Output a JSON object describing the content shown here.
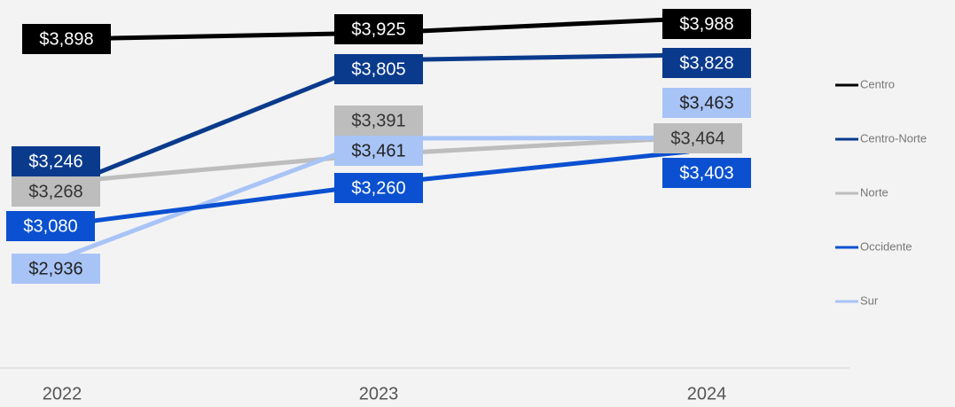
{
  "chart_data": {
    "type": "line",
    "x": [
      "2022",
      "2023",
      "2024"
    ],
    "ylim": [
      2450,
      4070
    ],
    "series": [
      {
        "name": "Centro",
        "color": "#000000",
        "values": [
          3898,
          3925,
          3988
        ],
        "value_labels": [
          "$3,898",
          "$3,925",
          "$3,988"
        ]
      },
      {
        "name": "Centro-Norte",
        "color": "#0a3a8c",
        "values": [
          3246,
          3805,
          3828
        ],
        "value_labels": [
          "$3,246",
          "$3,805",
          "$3,828"
        ]
      },
      {
        "name": "Norte",
        "color": "#bdbdbd",
        "values": [
          3268,
          3391,
          3464
        ],
        "value_labels": [
          "$3,268",
          "$3,391",
          "$3,464"
        ]
      },
      {
        "name": "Occidente",
        "color": "#0a50d0",
        "values": [
          3080,
          3260,
          3403
        ],
        "value_labels": [
          "$3,080",
          "$3,260",
          "$3,403"
        ]
      },
      {
        "name": "Sur",
        "color": "#a8c4f7",
        "values": [
          2936,
          3461,
          3463
        ],
        "value_labels": [
          "$2,936",
          "$3,461",
          "$3,463"
        ]
      }
    ]
  }
}
